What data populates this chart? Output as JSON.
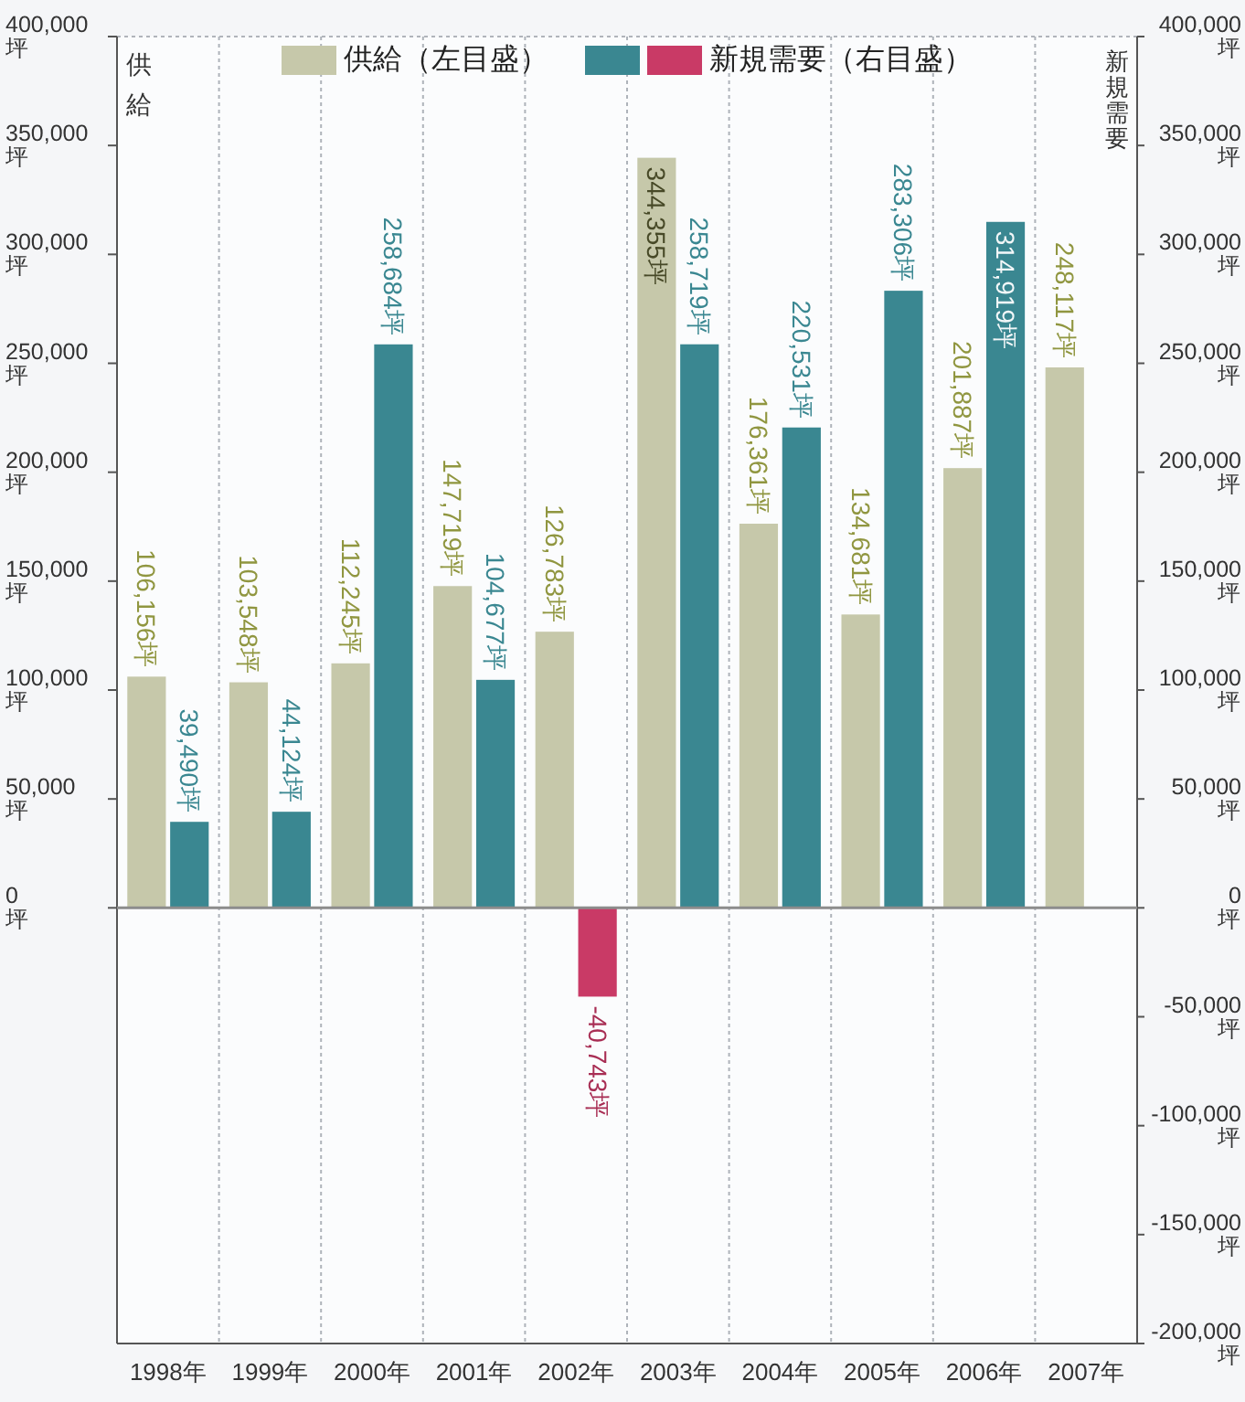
{
  "chart_data": {
    "type": "bar",
    "categories": [
      "1998年",
      "1999年",
      "2000年",
      "2001年",
      "2002年",
      "2003年",
      "2004年",
      "2005年",
      "2006年",
      "2007年"
    ],
    "ylabel": "供給",
    "y2label": "新規需要",
    "series": [
      {
        "name": "供給（左目盛）",
        "color": "#c6c8aa",
        "values": [
          106156,
          103548,
          112245,
          147719,
          126783,
          344355,
          176361,
          134681,
          201887,
          248117
        ],
        "value_labels": [
          "106,156坪",
          "103,548坪",
          "112,245坪",
          "147,719坪",
          "126,783坪",
          "344,355坪",
          "176,361坪",
          "134,681坪",
          "201,887坪",
          "248,117坪"
        ]
      },
      {
        "name": "新規需要（右目盛）",
        "axis": "y2",
        "colors": [
          "#3a8791",
          "#3a8791",
          "#3a8791",
          "#3a8791",
          "#c93a66",
          "#3a8791",
          "#3a8791",
          "#3a8791",
          "#3a8791",
          null
        ],
        "values": [
          39490,
          44124,
          258684,
          104677,
          -40743,
          258719,
          220531,
          283306,
          314919,
          null
        ],
        "value_labels": [
          "39,490坪",
          "44,124坪",
          "258,684坪",
          "104,677坪",
          "-40,743坪",
          "258,719坪",
          "220,531坪",
          "283,306坪",
          "314,919坪",
          null
        ]
      }
    ],
    "ylim": [
      -200000,
      400000
    ],
    "yticks": [
      {
        "value": 0,
        "label": "0\n坪"
      },
      {
        "value": 50000,
        "label": "50,000\n坪"
      },
      {
        "value": 100000,
        "label": "100,000\n坪"
      },
      {
        "value": 150000,
        "label": "150,000\n坪"
      },
      {
        "value": 200000,
        "label": "200,000\n坪"
      },
      {
        "value": 250000,
        "label": "250,000\n坪"
      },
      {
        "value": 300000,
        "label": "300,000\n坪"
      },
      {
        "value": 350000,
        "label": "350,000\n坪"
      },
      {
        "value": 400000,
        "label": "400,000\n坪"
      }
    ],
    "y2lim": [
      -200000,
      400000
    ],
    "y2ticks": [
      {
        "value": -200000,
        "label": "-200,000\n坪"
      },
      {
        "value": -150000,
        "label": "-150,000\n坪"
      },
      {
        "value": -100000,
        "label": "-100,000\n坪"
      },
      {
        "value": -50000,
        "label": "-50,000\n坪"
      },
      {
        "value": 0,
        "label": "0\n坪"
      },
      {
        "value": 50000,
        "label": "50,000\n坪"
      },
      {
        "value": 100000,
        "label": "100,000\n坪"
      },
      {
        "value": 150000,
        "label": "150,000\n坪"
      },
      {
        "value": 200000,
        "label": "200,000\n坪"
      },
      {
        "value": 250000,
        "label": "250,000\n坪"
      },
      {
        "value": 300000,
        "label": "300,000\n坪"
      },
      {
        "value": 350000,
        "label": "350,000\n坪"
      },
      {
        "value": 400000,
        "label": "400,000\n坪"
      }
    ],
    "grid": "x",
    "legend": "top",
    "ref_lines": [
      {
        "axis": "y",
        "value": 0,
        "color": "#8c8c8c"
      }
    ]
  }
}
